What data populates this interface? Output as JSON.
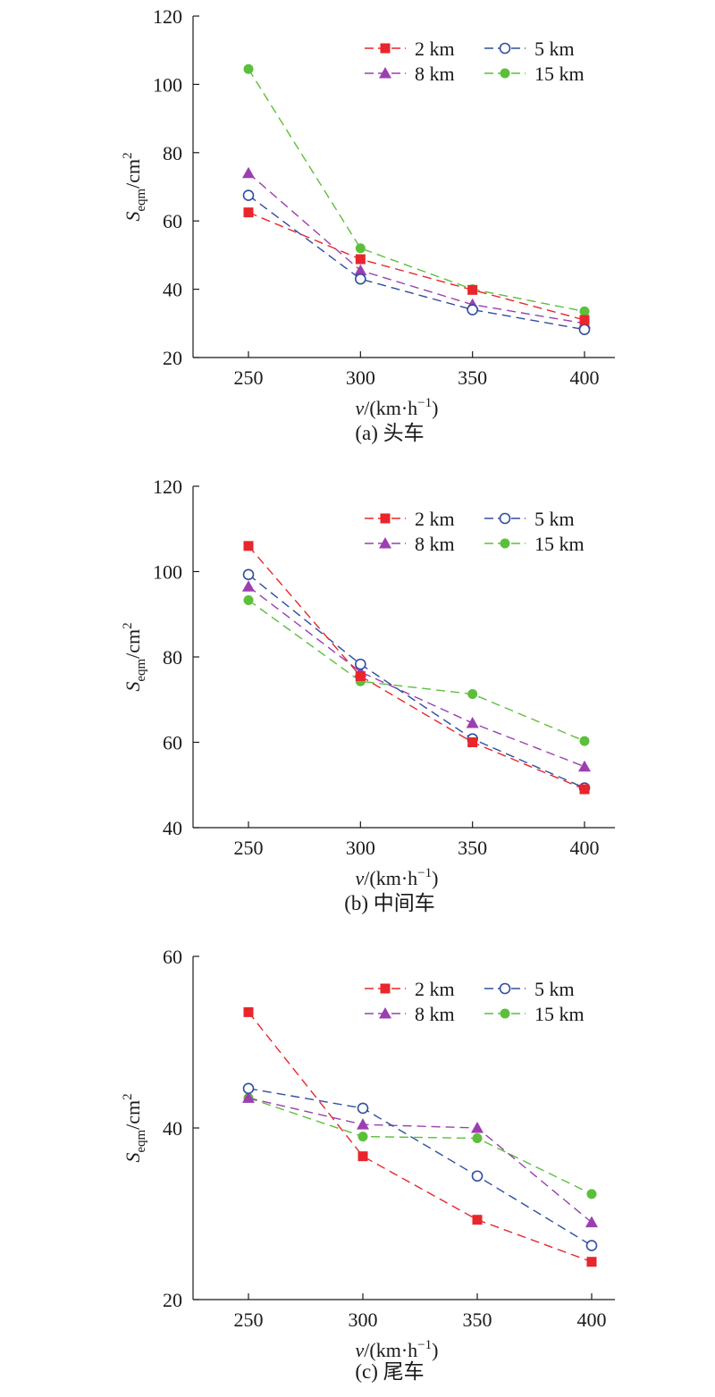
{
  "colors": {
    "2 km": "#e8262b",
    "5 km": "#2f4ea0",
    "8 km": "#9b3fb0",
    "15 km": "#5cbf3a"
  },
  "legend": [
    {
      "label": "2 km",
      "marker": "square",
      "fill": true
    },
    {
      "label": "5 km",
      "marker": "circle",
      "fill": false
    },
    {
      "label": "8 km",
      "marker": "triangle",
      "fill": true
    },
    {
      "label": "15 km",
      "marker": "circle",
      "fill": true
    }
  ],
  "chart_data": [
    {
      "type": "line",
      "caption": "(a) 头车",
      "ylabel": "S_eqm/cm^2",
      "xlabel": "v/(km·h^−1)",
      "x": [
        250,
        300,
        350,
        400
      ],
      "xticks": [
        "250",
        "300",
        "350",
        "400"
      ],
      "ylim": [
        20,
        120
      ],
      "yticks": [
        20,
        40,
        60,
        80,
        100,
        120
      ],
      "legend_position": "top-right",
      "series": [
        {
          "name": "2 km",
          "values": [
            62.5,
            48.8,
            39.8,
            31.0
          ]
        },
        {
          "name": "5 km",
          "values": [
            67.5,
            43.0,
            34.0,
            28.2
          ]
        },
        {
          "name": "8 km",
          "values": [
            74.0,
            45.5,
            35.5,
            30.0
          ]
        },
        {
          "name": "15 km",
          "values": [
            104.5,
            52.0,
            40.0,
            33.5
          ]
        }
      ]
    },
    {
      "type": "line",
      "caption": "(b) 中间车",
      "ylabel": "S_eqm/cm^2",
      "xlabel": "v/(km·h^−1)",
      "x": [
        250,
        300,
        350,
        400
      ],
      "xticks": [
        "250",
        "300",
        "350",
        "400"
      ],
      "ylim": [
        40,
        120
      ],
      "yticks": [
        40,
        60,
        80,
        100,
        120
      ],
      "legend_position": "top-right",
      "series": [
        {
          "name": "2 km",
          "values": [
            106.0,
            75.5,
            60.0,
            49.0
          ]
        },
        {
          "name": "5 km",
          "values": [
            99.3,
            78.3,
            60.8,
            49.3
          ]
        },
        {
          "name": "8 km",
          "values": [
            96.5,
            76.5,
            64.5,
            54.3
          ]
        },
        {
          "name": "15 km",
          "values": [
            93.3,
            74.3,
            71.3,
            60.3
          ]
        }
      ]
    },
    {
      "type": "line",
      "caption": "(c) 尾车",
      "ylabel": "S_eqm/cm^2",
      "xlabel": "v/(km·h^−1)",
      "x": [
        250,
        300,
        350,
        400
      ],
      "xticks": [
        "250",
        "300",
        "350",
        "400"
      ],
      "ylim": [
        20,
        60
      ],
      "yticks": [
        20,
        40,
        60
      ],
      "legend_position": "top-right",
      "series": [
        {
          "name": "2 km",
          "values": [
            53.5,
            36.7,
            29.3,
            24.4
          ]
        },
        {
          "name": "5 km",
          "values": [
            44.6,
            42.3,
            34.4,
            26.3
          ]
        },
        {
          "name": "8 km",
          "values": [
            43.5,
            40.4,
            40.0,
            29.0
          ]
        },
        {
          "name": "15 km",
          "values": [
            43.5,
            39.0,
            38.8,
            32.3
          ]
        }
      ]
    }
  ]
}
